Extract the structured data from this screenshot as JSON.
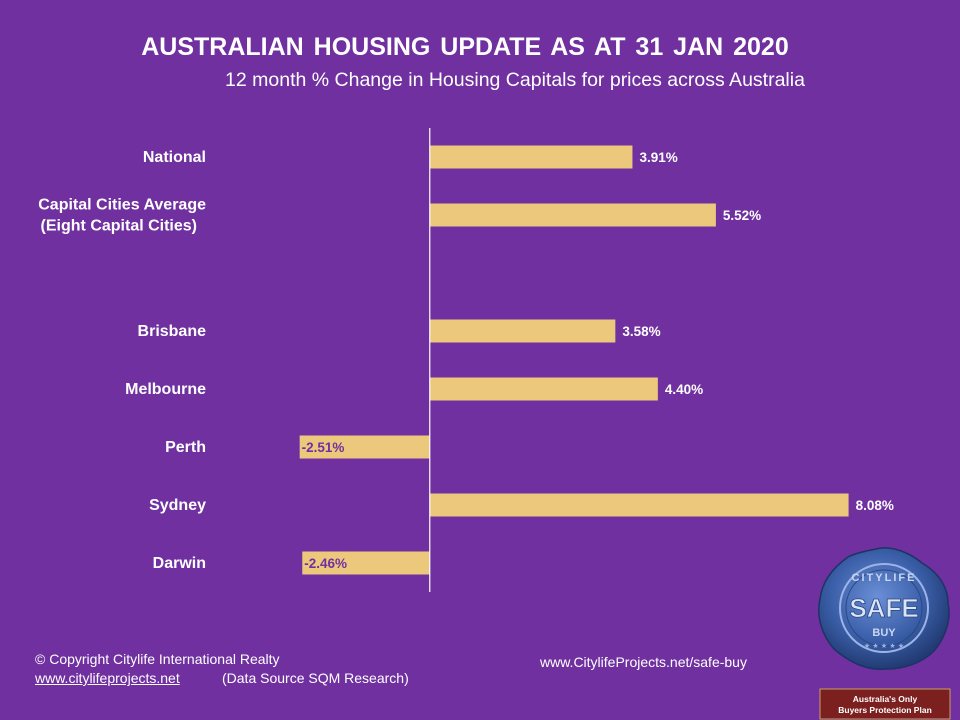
{
  "header": {
    "title": "AUSTRALIAN HOUSING UPDATE AS AT 31 JAN 2020",
    "subtitle": "12 month % Change in Housing Capitals for prices across Australia"
  },
  "colors": {
    "background": "#7030a0",
    "bar": "#ecc87c",
    "positive_label": "#ffffff",
    "negative_label": "#7030a0"
  },
  "chart_data": {
    "type": "bar",
    "orientation": "horizontal",
    "categories": [
      [
        "National"
      ],
      [
        "Capital Cities Average",
        "(Eight Capital Cities)"
      ],
      [],
      [
        "Brisbane"
      ],
      [
        "Melbourne"
      ],
      [
        "Perth"
      ],
      [
        "Sydney"
      ],
      [
        "Darwin"
      ]
    ],
    "values": [
      3.91,
      5.52,
      null,
      3.58,
      4.4,
      -2.51,
      8.08,
      -2.46
    ],
    "data_labels": [
      "3.91%",
      "5.52%",
      "",
      "3.58%",
      "4.40%",
      "-2.51%",
      "8.08%",
      "-2.46%"
    ],
    "xlim": [
      -2.6,
      8.3
    ],
    "grid": false,
    "legend": "none"
  },
  "footer": {
    "copyright": "© Copyright Citylife International  Realty",
    "website": "www.citylifeprojects.net",
    "source": "(Data Source SQM Research)",
    "safe_buy_url": "www.CitylifeProjects.net/safe-buy"
  },
  "badge": {
    "seal_text_top": "CITYLIFE",
    "seal_text_main": "SAFE",
    "seal_text_sub": "BUY",
    "ribbon_line1": "Australia's Only",
    "ribbon_line2": "Buyers Protection Plan",
    "seal_color": "#3a5fa8",
    "ribbon_color": "#7b1f1f"
  }
}
